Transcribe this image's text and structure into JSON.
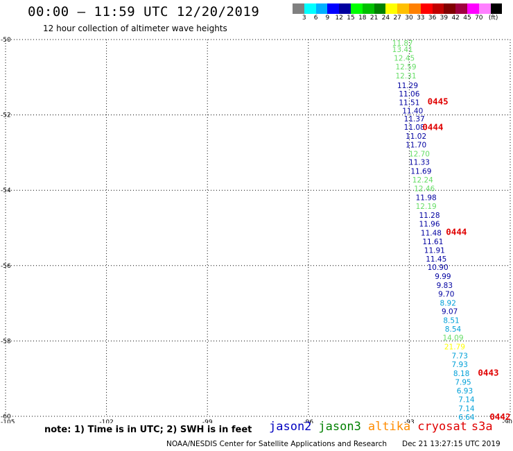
{
  "header": {
    "title": "00:00 – 11:59 UTC 12/20/2019",
    "subtitle": "12 hour collection of altimeter wave heights"
  },
  "colorbar": {
    "colors": [
      "#808080",
      "#00ffff",
      "#00b0ff",
      "#0000ff",
      "#0000a0",
      "#00ff00",
      "#00c000",
      "#008000",
      "#ffff00",
      "#ffc000",
      "#ff8000",
      "#ff0000",
      "#c00000",
      "#800000",
      "#a00040",
      "#ff00ff",
      "#ff80ff",
      "#000000"
    ],
    "labels": [
      "3",
      "6",
      "9",
      "12",
      "15",
      "18",
      "21",
      "24",
      "27",
      "30",
      "33",
      "36",
      "39",
      "42",
      "45",
      "70",
      "(ft)"
    ]
  },
  "axes": {
    "x_ticks": [
      "-105",
      "-102",
      "-99",
      "-96",
      "-93",
      "-90"
    ],
    "y_ticks": [
      "-50",
      "-52",
      "-54",
      "-56",
      "-58",
      "-60"
    ],
    "x_range": [
      -105,
      -90
    ],
    "y_range": [
      -60,
      -50
    ]
  },
  "observations": [
    {
      "text": "11.87",
      "color": "#66dd66",
      "x": -93.2,
      "y": -50.09
    },
    {
      "text": "13.41",
      "color": "#66dd66",
      "x": -93.2,
      "y": -50.26
    },
    {
      "text": "12.45",
      "color": "#66dd66",
      "x": -93.15,
      "y": -50.49
    },
    {
      "text": "12.59",
      "color": "#66dd66",
      "x": -93.1,
      "y": -50.72
    },
    {
      "text": "12.31",
      "color": "#66dd66",
      "x": -93.1,
      "y": -50.96
    },
    {
      "text": "11.29",
      "color": "#0000a0",
      "x": -93.05,
      "y": -51.22
    },
    {
      "text": "11.06",
      "color": "#0000a0",
      "x": -93.0,
      "y": -51.44
    },
    {
      "text": "11.51",
      "color": "#0000a0",
      "x": -93.0,
      "y": -51.67
    },
    {
      "text": "11.40",
      "color": "#0000a0",
      "x": -92.9,
      "y": -51.89
    },
    {
      "text": "11.37",
      "color": "#0000a0",
      "x": -92.85,
      "y": -52.1
    },
    {
      "text": "11.08",
      "color": "#0000a0",
      "x": -92.85,
      "y": -52.32
    },
    {
      "text": "11.02",
      "color": "#0000a0",
      "x": -92.8,
      "y": -52.56
    },
    {
      "text": "11.70",
      "color": "#0000a0",
      "x": -92.8,
      "y": -52.79
    },
    {
      "text": "12.70",
      "color": "#66dd66",
      "x": -92.7,
      "y": -53.03
    },
    {
      "text": "11.33",
      "color": "#0000a0",
      "x": -92.7,
      "y": -53.25
    },
    {
      "text": "11.69",
      "color": "#0000a0",
      "x": -92.65,
      "y": -53.49
    },
    {
      "text": "12.24",
      "color": "#66dd66",
      "x": -92.6,
      "y": -53.72
    },
    {
      "text": "12.46",
      "color": "#66dd66",
      "x": -92.55,
      "y": -53.95
    },
    {
      "text": "11.98",
      "color": "#0000a0",
      "x": -92.5,
      "y": -54.19
    },
    {
      "text": "12.19",
      "color": "#66dd66",
      "x": -92.5,
      "y": -54.42
    },
    {
      "text": "11.28",
      "color": "#0000a0",
      "x": -92.4,
      "y": -54.66
    },
    {
      "text": "11.96",
      "color": "#0000a0",
      "x": -92.4,
      "y": -54.89
    },
    {
      "text": "11.48",
      "color": "#0000a0",
      "x": -92.35,
      "y": -55.13
    },
    {
      "text": "11.61",
      "color": "#0000a0",
      "x": -92.3,
      "y": -55.36
    },
    {
      "text": "11.91",
      "color": "#0000a0",
      "x": -92.25,
      "y": -55.59
    },
    {
      "text": "11.45",
      "color": "#0000a0",
      "x": -92.2,
      "y": -55.82
    },
    {
      "text": "10.90",
      "color": "#0000a0",
      "x": -92.15,
      "y": -56.04
    },
    {
      "text": "9.99",
      "color": "#0000a0",
      "x": -92.0,
      "y": -56.28
    },
    {
      "text": "9.83",
      "color": "#0000a0",
      "x": -91.95,
      "y": -56.52
    },
    {
      "text": "9.70",
      "color": "#0000a0",
      "x": -91.9,
      "y": -56.75
    },
    {
      "text": "8.92",
      "color": "#00a0d8",
      "x": -91.85,
      "y": -56.99
    },
    {
      "text": "9.07",
      "color": "#0000a0",
      "x": -91.8,
      "y": -57.21
    },
    {
      "text": "8.51",
      "color": "#00a0d8",
      "x": -91.75,
      "y": -57.45
    },
    {
      "text": "8.54",
      "color": "#00a0d8",
      "x": -91.7,
      "y": -57.68
    },
    {
      "text": "14.09",
      "color": "#66dd66",
      "x": -91.7,
      "y": -57.91
    },
    {
      "text": "21.79",
      "color": "#ffff00",
      "x": -91.65,
      "y": -58.15
    },
    {
      "text": "7.73",
      "color": "#00a0d8",
      "x": -91.5,
      "y": -58.39
    },
    {
      "text": "7.93",
      "color": "#00a0d8",
      "x": -91.5,
      "y": -58.62
    },
    {
      "text": "8.18",
      "color": "#00a0d8",
      "x": -91.45,
      "y": -58.86
    },
    {
      "text": "7.95",
      "color": "#00a0d8",
      "x": -91.4,
      "y": -59.09
    },
    {
      "text": "6.93",
      "color": "#00a0d8",
      "x": -91.35,
      "y": -59.32
    },
    {
      "text": "7.14",
      "color": "#00a0d8",
      "x": -91.3,
      "y": -59.55
    },
    {
      "text": "7.14",
      "color": "#00a0d8",
      "x": -91.3,
      "y": -59.79
    },
    {
      "text": "6.64",
      "color": "#00a0d8",
      "x": -91.3,
      "y": -60.02
    }
  ],
  "pass_labels": [
    {
      "text": "0445",
      "x": -92.15,
      "y": -51.65
    },
    {
      "text": "0444",
      "x": -92.3,
      "y": -52.33
    },
    {
      "text": "0444",
      "x": -91.6,
      "y": -55.11
    },
    {
      "text": "0443",
      "x": -90.65,
      "y": -58.85
    },
    {
      "text": "0442",
      "x": -90.3,
      "y": -60.02
    }
  ],
  "note": "note: 1) Time is in UTC; 2) SWH is in feet",
  "legend": [
    {
      "label": "jason2",
      "color": "#0000c0"
    },
    {
      "label": "jason3",
      "color": "#008000"
    },
    {
      "label": "altika",
      "color": "#ff8c00"
    },
    {
      "label": "cryosat",
      "color": "#e00000"
    },
    {
      "label": "s3a",
      "color": "#e00000"
    }
  ],
  "credit": "NOAA/NESDIS Center for Satellite Applications and Research",
  "timestamp": "Dec 21 13:27:15 UTC 2019"
}
